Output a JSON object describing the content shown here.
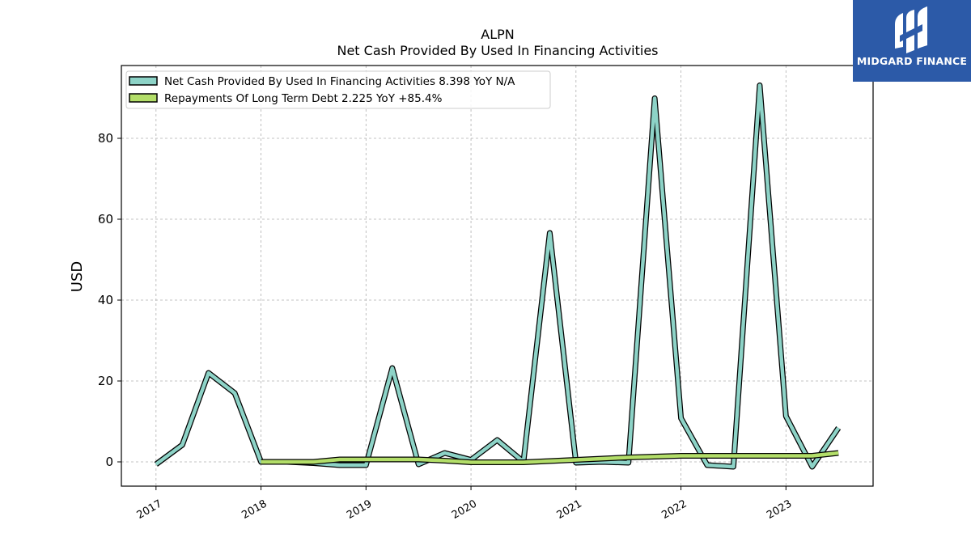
{
  "logo": {
    "text": "MIDGARD FINANCE",
    "color": "#2c5aa8",
    "icon": "midgard-logo-icon"
  },
  "chart_data": {
    "type": "line",
    "title": "ALPN",
    "subtitle": "Net Cash Provided By Used In Financing Activities",
    "xlabel": "",
    "ylabel": "USD",
    "ylim": [
      -6,
      98
    ],
    "xlim": [
      2016.67,
      2023.83
    ],
    "yticks": [
      0,
      20,
      40,
      60,
      80
    ],
    "xticks": [
      "2017",
      "2018",
      "2019",
      "2020",
      "2021",
      "2022",
      "2023"
    ],
    "grid": true,
    "legend_position": "top-left",
    "series": [
      {
        "name": "Net Cash Provided By Used In Financing Activities",
        "legend_label": "Net Cash Provided By Used In Financing Activities  8.398 YoY N/A",
        "color": "#8dd3c7",
        "x": [
          2017.0,
          2017.25,
          2017.5,
          2017.75,
          2018.0,
          2018.25,
          2018.5,
          2018.75,
          2019.0,
          2019.25,
          2019.5,
          2019.75,
          2020.0,
          2020.25,
          2020.5,
          2020.75,
          2021.0,
          2021.25,
          2021.5,
          2021.75,
          2022.0,
          2022.25,
          2022.5,
          2022.75,
          2023.0,
          2023.25,
          2023.5
        ],
        "values": [
          -0.6,
          4.2,
          22.0,
          17.0,
          0.0,
          0.0,
          -0.3,
          -0.8,
          -0.8,
          23.2,
          -0.6,
          2.2,
          0.5,
          5.4,
          0.0,
          56.6,
          -0.2,
          0.0,
          -0.2,
          89.9,
          10.8,
          -0.8,
          -1.2,
          93.1,
          11.3,
          -1.2,
          8.4
        ]
      },
      {
        "name": "Repayments Of Long Term Debt",
        "legend_label": "Repayments Of Long Term Debt  2.225 YoY +85.4%",
        "color": "#b3de69",
        "x": [
          2018.0,
          2018.25,
          2018.5,
          2018.75,
          2019.0,
          2019.25,
          2019.5,
          2019.75,
          2020.0,
          2020.25,
          2020.5,
          2020.75,
          2021.0,
          2021.25,
          2021.5,
          2021.75,
          2022.0,
          2022.25,
          2022.5,
          2022.75,
          2023.0,
          2023.25,
          2023.5
        ],
        "values": [
          0.0,
          0.0,
          0.0,
          0.6,
          0.6,
          0.6,
          0.6,
          0.3,
          -0.1,
          -0.1,
          -0.1,
          0.2,
          0.5,
          0.8,
          1.1,
          1.3,
          1.5,
          1.5,
          1.5,
          1.5,
          1.5,
          1.5,
          2.2
        ]
      }
    ]
  }
}
